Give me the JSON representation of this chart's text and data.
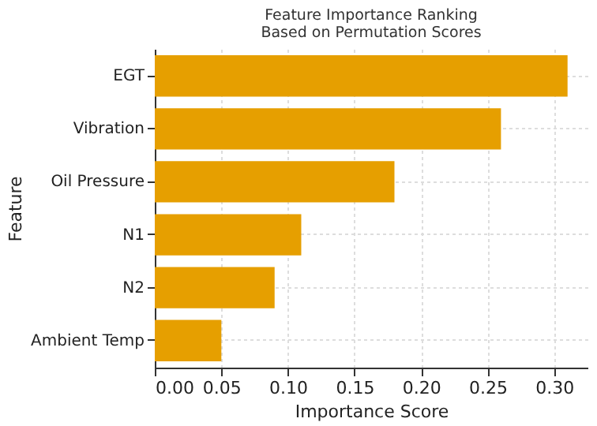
{
  "chart_data": {
    "type": "bar",
    "orientation": "horizontal",
    "title": "Feature Importance Ranking\nBased on Permutation Scores",
    "xlabel": "Importance Score",
    "ylabel": "Feature",
    "categories": [
      "EGT",
      "Vibration",
      "Oil Pressure",
      "N1",
      "N2",
      "Ambient Temp"
    ],
    "values": [
      0.31,
      0.26,
      0.18,
      0.11,
      0.09,
      0.05
    ],
    "color": "#e69f00",
    "xlim": [
      0,
      0.325
    ],
    "xticks": [
      {
        "value": 0,
        "label": "0.00"
      },
      {
        "value": 0.05,
        "label": "0.05"
      },
      {
        "value": 0.1,
        "label": "0.10"
      },
      {
        "value": 0.15,
        "label": "0.15"
      },
      {
        "value": 0.2,
        "label": "0.20"
      },
      {
        "value": 0.25,
        "label": "0.25"
      },
      {
        "value": 0.3,
        "label": "0.30"
      }
    ],
    "grid": true
  }
}
